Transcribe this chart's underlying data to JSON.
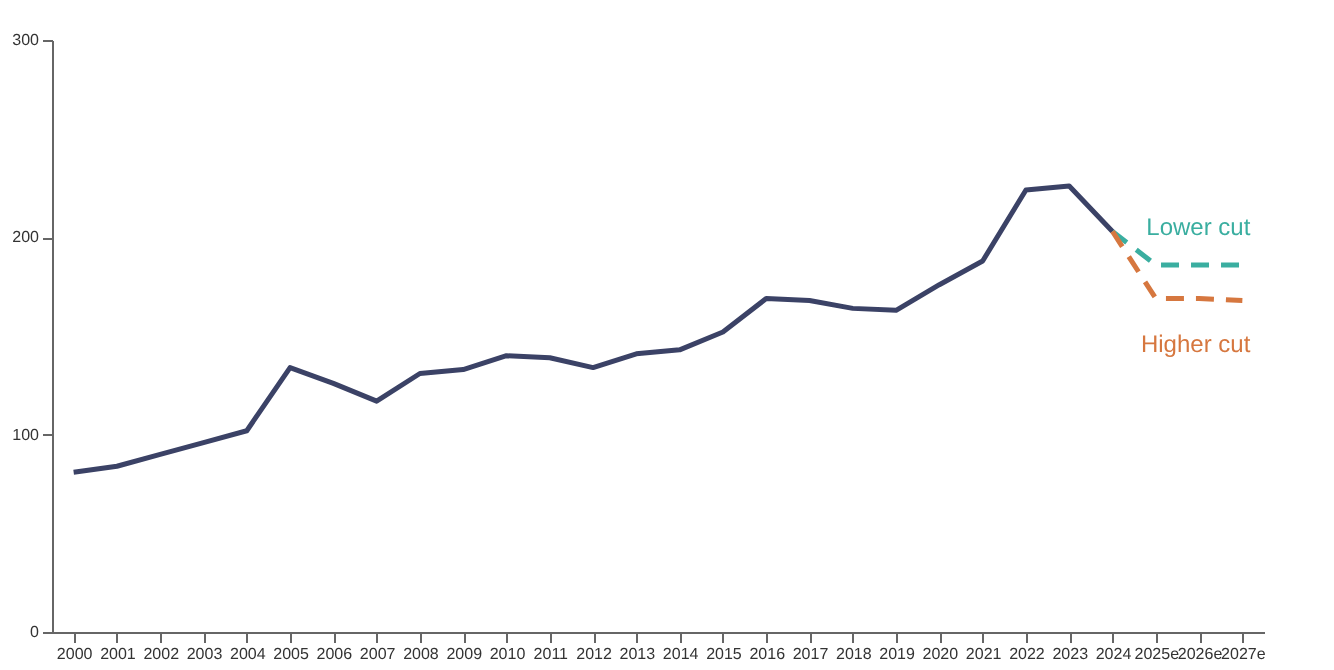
{
  "chart_data": {
    "type": "line",
    "categories": [
      "2000",
      "2001",
      "2002",
      "2003",
      "2004",
      "2005",
      "2006",
      "2007",
      "2008",
      "2009",
      "2010",
      "2011",
      "2012",
      "2013",
      "2014",
      "2015",
      "2016",
      "2017",
      "2018",
      "2019",
      "2020",
      "2021",
      "2022",
      "2023",
      "2024",
      "2025e",
      "2026e",
      "2027e"
    ],
    "series": [
      {
        "color": "#3b4266",
        "line_style": "solid",
        "values": [
          81,
          84,
          90,
          96,
          102,
          134,
          126,
          117,
          131,
          133,
          140,
          139,
          134,
          141,
          143,
          152,
          169,
          168,
          164,
          163,
          176,
          188,
          224,
          226,
          203,
          null,
          null,
          null
        ]
      },
      {
        "name": "Lower cut",
        "color": "#3aaea0",
        "line_style": "dashed",
        "values": [
          null,
          null,
          null,
          null,
          null,
          null,
          null,
          null,
          null,
          null,
          null,
          null,
          null,
          null,
          null,
          null,
          null,
          null,
          null,
          null,
          null,
          null,
          null,
          null,
          203,
          186,
          186,
          186
        ]
      },
      {
        "name": "Higher cut",
        "color": "#d6773f",
        "line_style": "dashed",
        "values": [
          null,
          null,
          null,
          null,
          null,
          null,
          null,
          null,
          null,
          null,
          null,
          null,
          null,
          null,
          null,
          null,
          null,
          null,
          null,
          null,
          null,
          null,
          null,
          null,
          203,
          169,
          169,
          168
        ]
      }
    ],
    "ylim": [
      0,
      300
    ],
    "yticks": [
      0,
      100,
      200,
      300
    ],
    "grid": false
  }
}
